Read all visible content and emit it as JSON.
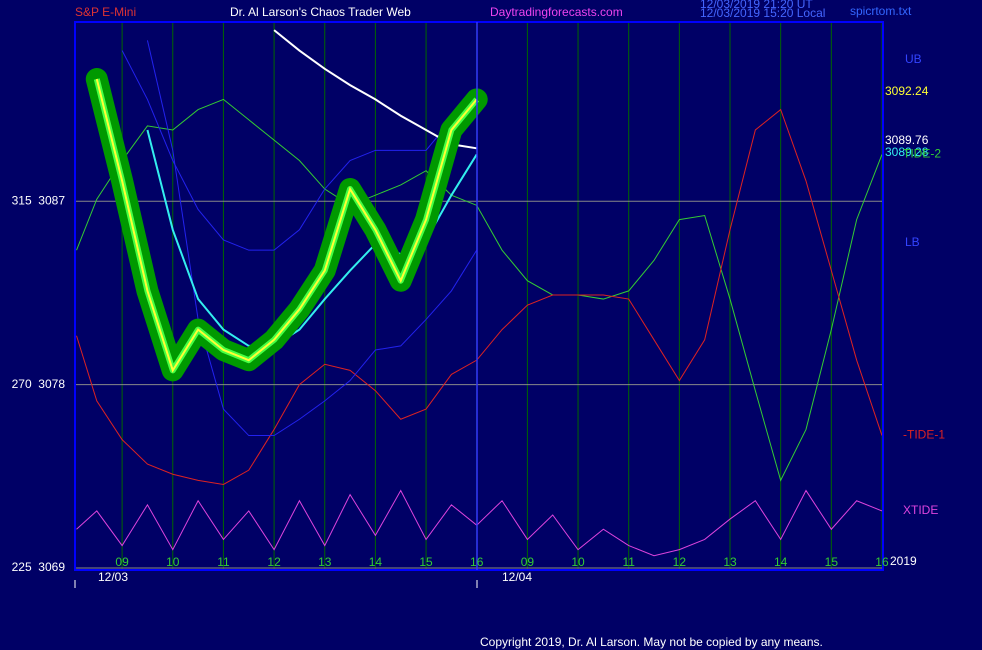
{
  "chart_data": {
    "type": "line",
    "title": "Dr. Al Larson's Chaos Trader Web",
    "annotations": [
      "S&P E-Mini",
      "Daytradingforecasts.com",
      "12/03/2019 21:20 UT",
      "12/03/2019 15:20 Local",
      "spicrtom.txt",
      "UB",
      "3092.24",
      "3089.76",
      "3089.28",
      "LB",
      "2019",
      "12/03",
      "12/04",
      "Copyright 2019, Dr. Al Larson. May not be copied by any means."
    ],
    "x": [
      8.1,
      8.5,
      9,
      9.5,
      10,
      10.5,
      11,
      11.5,
      12,
      12.5,
      13,
      13.5,
      14,
      14.5,
      15,
      15.5,
      16,
      16.5,
      17,
      17.5,
      18,
      18.5,
      19,
      19.5,
      20,
      20.5,
      21,
      21.5,
      22,
      22.5,
      23,
      23.5,
      24
    ],
    "xlim": [
      8.07,
      24.02
    ],
    "xticks": [
      {
        "value": 9,
        "label": "09"
      },
      10,
      11,
      12,
      13,
      14,
      15,
      16,
      {
        "value": 17,
        "label": "09"
      },
      {
        "value": 18,
        "label": "10"
      },
      {
        "value": 19,
        "label": "11"
      },
      {
        "value": 20,
        "label": "12"
      },
      {
        "value": 21,
        "label": "13"
      },
      {
        "value": 22,
        "label": "14"
      },
      {
        "value": 23,
        "label": "15"
      },
      {
        "value": 24,
        "label": "16"
      }
    ],
    "ylim": [
      3068.9,
      3095.8
    ],
    "yticks": [
      {
        "value": 3069,
        "label": "225  3069"
      },
      {
        "value": 3078,
        "label": "270  3078"
      },
      {
        "value": 3087,
        "label": "315  3087"
      }
    ],
    "grid": true,
    "series": [
      {
        "name": "TIDE-2",
        "color": "#33cc33",
        "values": [
          3084.6,
          3087.1,
          3089.0,
          3090.7,
          3090.5,
          3091.5,
          3092.0,
          3091.0,
          3090.0,
          3089.0,
          3087.6,
          3086.8,
          3087.3,
          3087.8,
          3088.5,
          3087.3,
          3086.8,
          3084.6,
          3083.1,
          3082.4,
          3082.4,
          3082.2,
          3082.6,
          3084.1,
          3086.1,
          3086.3,
          3082.2,
          3077.7,
          3073.3,
          3075.8,
          3080.7,
          3086.1,
          3089.3
        ]
      },
      {
        "name": "-TIDE-1",
        "color": "#dd2222",
        "values": [
          3080.4,
          3077.2,
          3075.3,
          3074.1,
          3073.6,
          3073.3,
          3073.1,
          3073.8,
          3075.8,
          3078.0,
          3079.0,
          3078.7,
          3077.7,
          3076.3,
          3076.8,
          3078.5,
          3079.2,
          3080.7,
          3081.9,
          3082.4,
          3082.4,
          3082.4,
          3082.2,
          3080.2,
          3078.2,
          3080.2,
          3085.6,
          3090.5,
          3091.5,
          3088.0,
          3083.6,
          3079.2,
          3075.5
        ]
      },
      {
        "name": "XTIDE",
        "color": "#dd44dd",
        "values": [
          3070.9,
          3071.8,
          3070.1,
          3072.1,
          3069.9,
          3072.3,
          3070.4,
          3071.8,
          3069.9,
          3072.3,
          3070.1,
          3072.6,
          3070.6,
          3072.8,
          3070.4,
          3072.1,
          3071.1,
          3072.3,
          3070.4,
          3071.6,
          3069.9,
          3070.9,
          3070.1,
          3069.6,
          3069.9,
          3070.4,
          3071.4,
          3072.3,
          3070.4,
          3072.8,
          3070.9,
          3072.3,
          3071.8
        ]
      },
      {
        "color": "#2222ee",
        "values": [
          null,
          null,
          3094.4,
          3092.0,
          3089.0,
          3086.6,
          3085.1,
          3084.6,
          3084.6,
          3085.6,
          3087.6,
          3089.0,
          3089.5,
          3089.5,
          3089.5,
          3091.0,
          3092.2,
          null,
          null,
          null,
          null,
          null,
          null,
          null,
          null,
          null,
          null,
          null,
          null,
          null,
          null,
          null,
          null
        ]
      },
      {
        "color": "#2222ee",
        "values": [
          null,
          null,
          null,
          3094.9,
          3089.5,
          3081.2,
          3076.8,
          3075.5,
          3075.5,
          3076.3,
          3077.2,
          3078.2,
          3079.7,
          3079.9,
          3081.2,
          3082.6,
          3084.6,
          null,
          null,
          null,
          null,
          null,
          null,
          null,
          null,
          null,
          null,
          null,
          null,
          null,
          null,
          null,
          null
        ]
      },
      {
        "color": "#ffffff",
        "values": [
          null,
          null,
          null,
          null,
          null,
          null,
          null,
          null,
          3095.4,
          3094.4,
          3093.5,
          3092.7,
          3092.0,
          3091.2,
          3090.5,
          3089.8,
          3089.6,
          null,
          null,
          null,
          null,
          null,
          null,
          null,
          null,
          null,
          null,
          null,
          null,
          null,
          null,
          null,
          null
        ]
      },
      {
        "color": "#33eeee",
        "values": [
          null,
          null,
          null,
          3090.5,
          3085.6,
          3082.2,
          3080.7,
          3079.9,
          3079.9,
          3080.7,
          3082.2,
          3083.6,
          3084.9,
          3084.4,
          3085.1,
          3087.3,
          3089.3,
          null,
          null,
          null,
          null,
          null,
          null,
          null,
          null,
          null,
          null,
          null,
          null,
          null,
          null,
          null,
          null
        ]
      },
      {
        "color": "#ffff33",
        "values": [
          null,
          3093.0,
          3088.0,
          3082.6,
          3078.7,
          3080.7,
          3079.7,
          3079.2,
          3080.2,
          3081.7,
          3083.6,
          3087.6,
          3085.6,
          3083.1,
          3086.1,
          3090.5,
          3092.0,
          null,
          null,
          null,
          null,
          null,
          null,
          null,
          null,
          null,
          null,
          null,
          null,
          null,
          null,
          null,
          null
        ]
      }
    ]
  }
}
